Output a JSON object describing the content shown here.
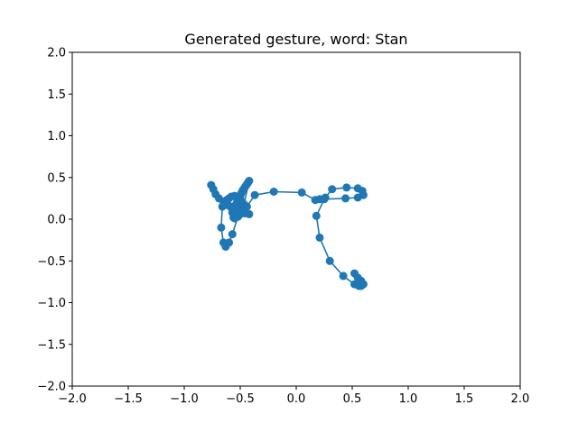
{
  "chart_data": {
    "type": "line",
    "title": "Generated gesture, word: Stan",
    "xlabel": "",
    "ylabel": "",
    "xlim": [
      -2.0,
      2.0
    ],
    "ylim": [
      -2.0,
      2.0
    ],
    "xticks": [
      "−2.0",
      "−1.5",
      "−1.0",
      "−0.5",
      "0.0",
      "0.5",
      "1.0",
      "1.5",
      "2.0"
    ],
    "yticks": [
      "−2.0",
      "−1.5",
      "−1.0",
      "−0.5",
      "0.0",
      "0.5",
      "1.0",
      "1.5",
      "2.0"
    ],
    "grid": false,
    "legend": "none",
    "color": "#1f77b4",
    "series": [
      {
        "marker": "circle",
        "x": [
          -0.76,
          -0.74,
          -0.72,
          -0.69,
          -0.65,
          -0.62,
          -0.6,
          -0.58,
          -0.55,
          -0.52,
          -0.5,
          -0.49,
          -0.51,
          -0.53,
          -0.55,
          -0.56,
          -0.57,
          -0.56,
          -0.55,
          -0.54,
          -0.53,
          -0.52,
          -0.51,
          -0.5,
          -0.49,
          -0.48,
          -0.47,
          -0.46,
          -0.45,
          -0.44,
          -0.43,
          -0.42,
          -0.48,
          -0.52,
          -0.55,
          -0.56,
          -0.54,
          -0.5,
          -0.46,
          -0.42,
          -0.52,
          -0.57,
          -0.6,
          -0.63,
          -0.65,
          -0.67,
          -0.66,
          -0.64,
          -0.62,
          -0.6,
          -0.58,
          -0.55,
          -0.52,
          -0.5,
          -0.48,
          -0.46,
          -0.44,
          -0.37,
          -0.2,
          0.05,
          0.17,
          0.21,
          0.26,
          0.32,
          0.45,
          0.55,
          0.59,
          0.6,
          0.55,
          0.44,
          0.25,
          0.18,
          0.21,
          0.3,
          0.42,
          0.52,
          0.56,
          0.58,
          0.6,
          0.58,
          0.55,
          0.52
        ],
        "y": [
          0.41,
          0.36,
          0.3,
          0.25,
          0.21,
          0.18,
          0.16,
          0.14,
          0.13,
          0.14,
          0.16,
          0.2,
          0.22,
          0.2,
          0.16,
          0.12,
          0.08,
          0.06,
          0.1,
          0.14,
          0.18,
          0.22,
          0.25,
          0.28,
          0.31,
          0.34,
          0.36,
          0.38,
          0.4,
          0.42,
          0.44,
          0.46,
          0.1,
          0.04,
          0.01,
          0.02,
          0.05,
          0.06,
          0.07,
          0.06,
          0.03,
          -0.18,
          -0.28,
          -0.33,
          -0.28,
          -0.1,
          0.15,
          0.21,
          0.23,
          0.25,
          0.27,
          0.28,
          0.27,
          0.24,
          0.2,
          0.17,
          0.15,
          0.29,
          0.33,
          0.32,
          0.23,
          0.24,
          0.26,
          0.36,
          0.38,
          0.37,
          0.34,
          0.29,
          0.26,
          0.25,
          0.24,
          0.04,
          -0.22,
          -0.5,
          -0.68,
          -0.78,
          -0.8,
          -0.8,
          -0.78,
          -0.74,
          -0.7,
          -0.65
        ]
      }
    ]
  }
}
